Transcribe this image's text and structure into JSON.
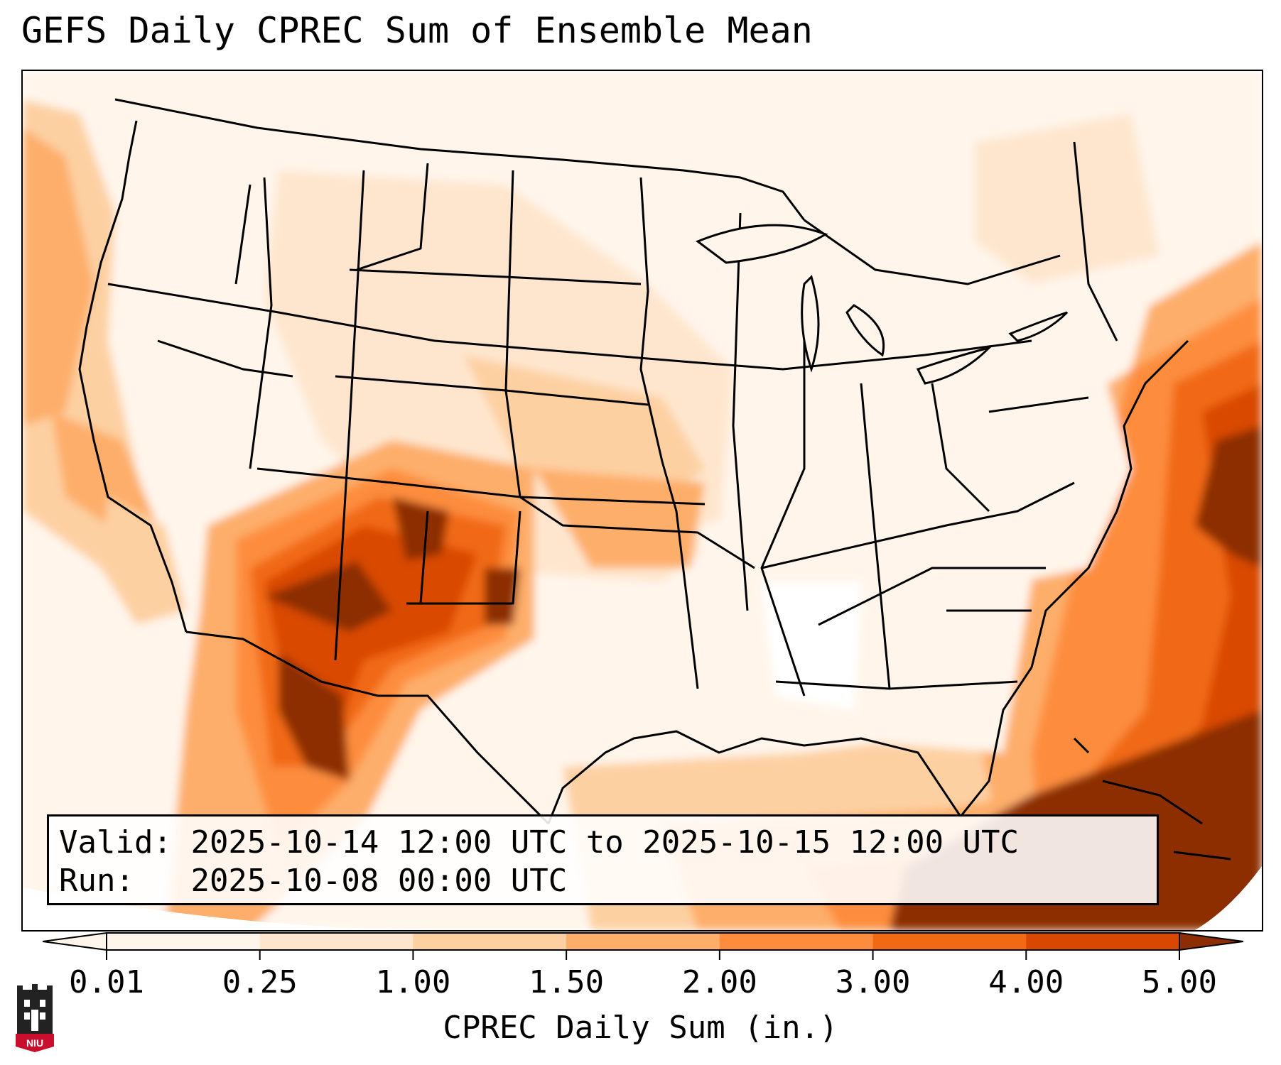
{
  "title": "GEFS Daily CPREC Sum of Ensemble Mean",
  "info": {
    "valid_label": "Valid:",
    "valid_value": "2025-10-14 12:00 UTC to 2025-10-15 12:00 UTC",
    "run_label": "Run:",
    "run_value": "2025-10-08 00:00 UTC"
  },
  "colorbar": {
    "label": "CPREC Daily Sum (in.)",
    "ticks": [
      "0.01",
      "0.25",
      "1.00",
      "1.50",
      "2.00",
      "3.00",
      "4.00",
      "5.00"
    ],
    "colors": [
      "#fff5eb",
      "#fee6ce",
      "#fdd0a2",
      "#fdae6b",
      "#fd8d3c",
      "#f16913",
      "#d94801",
      "#8c2d04"
    ],
    "extend": "both"
  },
  "map": {
    "region": "Contiguous United States",
    "field": "CPREC daily sum (in.)",
    "features": [
      "state-borders",
      "coastlines",
      "country-borders",
      "great-lakes"
    ]
  },
  "logo": {
    "text": "NIU",
    "icon": "niu-castle-logo-icon"
  }
}
